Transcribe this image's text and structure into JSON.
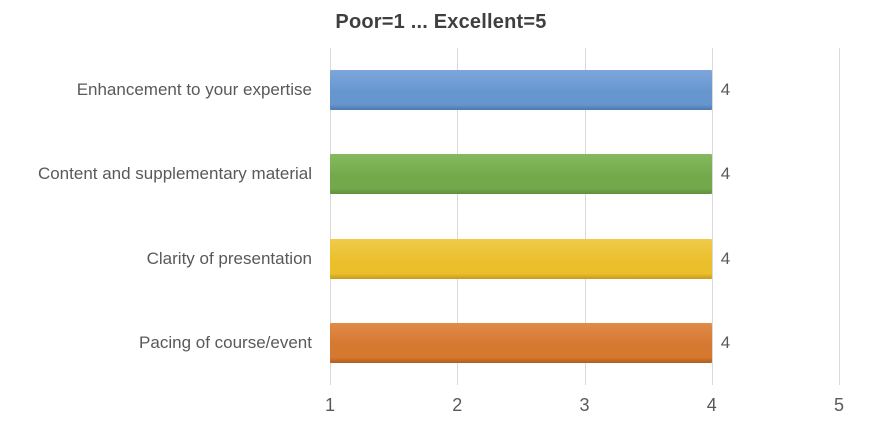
{
  "chart_data": {
    "type": "bar",
    "orientation": "horizontal",
    "title": "Poor=1 ... Excellent=5",
    "categories": [
      "Enhancement to your expertise",
      "Content and supplementary material",
      "Clarity of presentation",
      "Pacing of course/event"
    ],
    "values": [
      4,
      4,
      4,
      4
    ],
    "data_labels": [
      "4",
      "4",
      "4",
      "4"
    ],
    "xlabel": "",
    "ylabel": "",
    "xlim": [
      1,
      5
    ],
    "xticks": [
      1,
      2,
      3,
      4,
      5
    ],
    "grid": true,
    "legend": false,
    "bar_colors": [
      {
        "name": "blue",
        "top": "#7DA6DB",
        "base": "#6796CF",
        "dark": "#4F79AE"
      },
      {
        "name": "green",
        "top": "#86B95F",
        "base": "#74A94B",
        "dark": "#5F8F3D"
      },
      {
        "name": "yellow",
        "top": "#F0CB4B",
        "base": "#EBBF2C",
        "dark": "#C69B1D"
      },
      {
        "name": "orange",
        "top": "#E08B49",
        "base": "#D57830",
        "dark": "#B05E1E"
      }
    ],
    "colors": {
      "title_text": "#3F3F3F",
      "axis_text": "#595959",
      "data_label_text": "#595959",
      "gridline": "#D9D9D9",
      "background": "#FFFFFF"
    }
  }
}
